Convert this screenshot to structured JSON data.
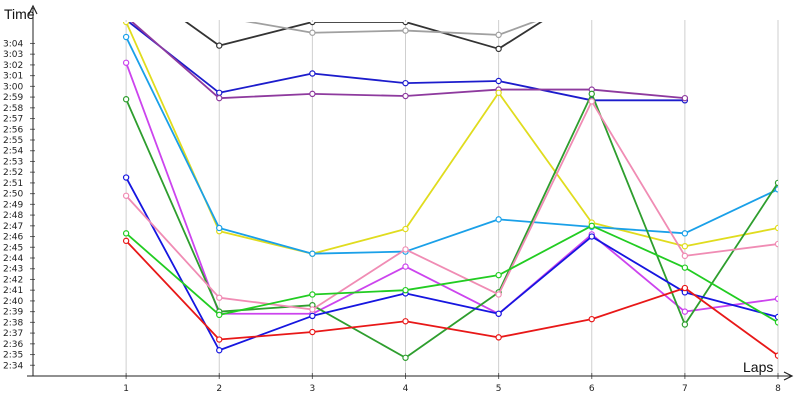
{
  "chart_data": {
    "type": "line",
    "title": "",
    "xlabel": "Laps",
    "ylabel": "Time",
    "x": [
      1,
      2,
      3,
      4,
      5,
      6,
      7,
      8
    ],
    "xlim": [
      0,
      8
    ],
    "x_ticks": [
      "1",
      "2",
      "3",
      "4",
      "5",
      "6",
      "7",
      "8"
    ],
    "ylim": [
      "2:33",
      "3:06"
    ],
    "y_ticks": [
      "2:34",
      "2:35",
      "2:36",
      "2:37",
      "2:38",
      "2:39",
      "2:40",
      "2:41",
      "2:42",
      "2:43",
      "2:44",
      "2:45",
      "2:46",
      "2:47",
      "2:48",
      "2:49",
      "2:50",
      "2:51",
      "2:52",
      "2:53",
      "2:54",
      "2:55",
      "2:56",
      "2:57",
      "2:58",
      "2:59",
      "3:00",
      "3:01",
      "3:02",
      "3:03",
      "3:04"
    ],
    "grid": true,
    "legend": "none",
    "series": [
      {
        "color": "#333333",
        "values": [
          "3:10",
          "3:03.8",
          "3:06",
          "3:06",
          "3:03.5",
          "3:09",
          null,
          null
        ]
      },
      {
        "color": "#a0a0a0",
        "values": [
          "3:08",
          "3:06.5",
          "3:05",
          "3:05.2",
          "3:04.8",
          "3:08",
          null,
          null
        ]
      },
      {
        "color": "#1c1ccc",
        "values": [
          "3:06.2",
          "2:59.4",
          "3:01.2",
          "3:00.3",
          "3:00.5",
          "2:58.7",
          "2:58.7",
          null
        ]
      },
      {
        "color": "#8e3a9e",
        "values": [
          "3:06.5",
          "2:58.9",
          "2:59.3",
          "2:59.1",
          "2:59.7",
          "2:59.7",
          "2:58.9",
          null
        ]
      },
      {
        "color": "#e0dc1e",
        "values": [
          "3:06",
          "2:46.5",
          "2:44.4",
          "2:46.7",
          "2:59.4",
          "2:47.3",
          "2:45.1",
          "2:46.8"
        ]
      },
      {
        "color": "#1aa0e8",
        "values": [
          "3:04.6",
          "2:46.8",
          "2:44.4",
          "2:44.6",
          "2:47.6",
          "2:46.9",
          "2:46.3",
          "2:50.4"
        ]
      },
      {
        "color": "#cc44ee",
        "values": [
          "3:02.2",
          "2:38.8",
          "2:38.8",
          "2:43.2",
          "2:38.8",
          "2:46.2",
          "2:39",
          "2:40.2"
        ]
      },
      {
        "color": "#2e9e2e",
        "values": [
          "2:58.8",
          "2:39",
          "2:39.6",
          "2:34.7",
          "2:40.8",
          "2:59.3",
          "2:37.8",
          "2:51"
        ]
      },
      {
        "color": "#1616e0",
        "values": [
          "2:51.5",
          "2:35.4",
          "2:38.6",
          "2:40.7",
          "2:38.8",
          "2:46",
          "2:40.8",
          "2:38.5"
        ]
      },
      {
        "color": "#f08cb4",
        "values": [
          "2:49.8",
          "2:40.3",
          "2:39.2",
          "2:44.8",
          "2:40.6",
          "2:58.6",
          "2:44.2",
          "2:45.3"
        ]
      },
      {
        "color": "#22cc22",
        "values": [
          "2:46.3",
          "2:38.7",
          "2:40.6",
          "2:41",
          "2:42.4",
          "2:47",
          "2:43.1",
          "2:38"
        ]
      },
      {
        "color": "#e81818",
        "values": [
          "2:45.6",
          "2:36.4",
          "2:37.1",
          "2:38.1",
          "2:36.6",
          "2:38.3",
          "2:41.2",
          "2:34.9"
        ]
      }
    ]
  }
}
